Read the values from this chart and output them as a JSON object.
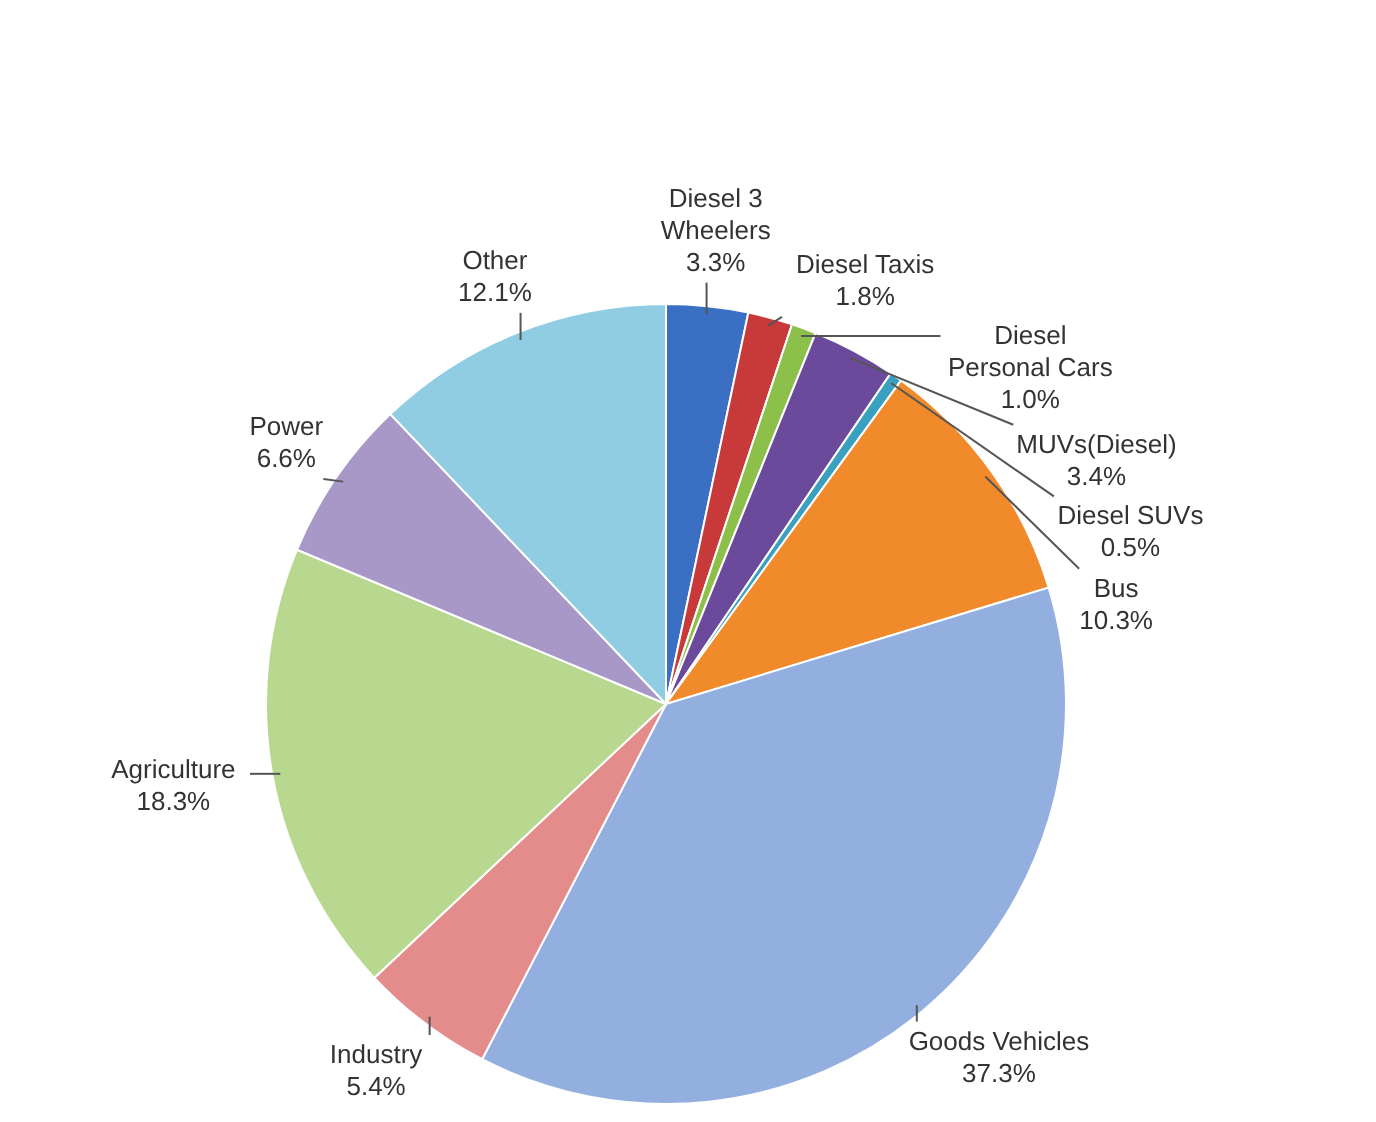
{
  "chart_data": {
    "type": "pie",
    "categories": [
      "Diesel 3 Wheelers",
      "Diesel Taxis",
      "Diesel Personal Cars",
      "MUVs(Diesel)",
      "Diesel SUVs",
      "Bus",
      "Goods Vehicles",
      "Industry",
      "Agriculture",
      "Power",
      "Other"
    ],
    "values": [
      3.3,
      1.8,
      1.0,
      3.4,
      0.5,
      10.3,
      37.3,
      5.4,
      18.3,
      6.6,
      12.1
    ],
    "value_labels": [
      "3.3%",
      "1.8%",
      "1.0%",
      "3.4%",
      "0.5%",
      "10.3%",
      "37.3%",
      "5.4%",
      "18.3%",
      "6.6%",
      "12.1%"
    ],
    "colors": [
      "#3a6fc4",
      "#c8393a",
      "#8cc04a",
      "#6b4a9c",
      "#3aa0c0",
      "#f08a2a",
      "#92afe0",
      "#e48c8c",
      "#b8d890",
      "#a898c8",
      "#90cde2"
    ]
  }
}
